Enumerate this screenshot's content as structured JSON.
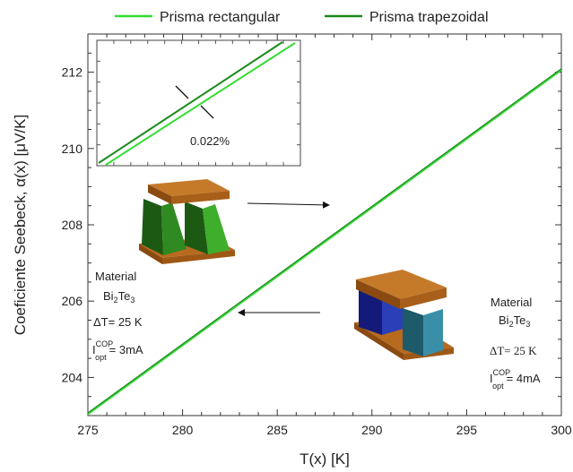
{
  "chart_data": {
    "type": "line",
    "xlabel": "T(x) [K]",
    "ylabel": "Coeficiente Seebeck, α(x) [μV/K]",
    "xlim": [
      275,
      300
    ],
    "ylim": [
      203,
      213
    ],
    "xticks": [
      "275",
      "280",
      "285",
      "290",
      "295",
      "300"
    ],
    "yticks": [
      "204",
      "206",
      "208",
      "210",
      "212"
    ],
    "series": [
      {
        "name": "Prisma rectangular",
        "color": "#33dd33",
        "x": [
          275,
          300
        ],
        "y": [
          203.03,
          212.05
        ]
      },
      {
        "name": "Prisma trapezoidal",
        "color": "#1a8a1a",
        "x": [
          275,
          300
        ],
        "y": [
          203.07,
          212.09
        ]
      }
    ],
    "legend_position": "top",
    "inset": {
      "annotation": "0.022%",
      "series": [
        {
          "color": "#33dd33",
          "x": [
            0,
            1
          ],
          "y": [
            0.0,
            1.0
          ]
        },
        {
          "color": "#1a8a1a",
          "x": [
            0,
            1
          ],
          "y": [
            0.03,
            1.03
          ]
        }
      ]
    },
    "annotations": {
      "left": {
        "title": "Material",
        "mat_base1": "Bi",
        "mat_sub1": "2",
        "mat_base2": "Te",
        "mat_sub2": "3",
        "delta_t": "ΔT= 25 K",
        "i_base": "I",
        "i_sup": "COP",
        "i_sub": "opt",
        "i_val": "= 3mA"
      },
      "right": {
        "title": "Material",
        "mat_base1": "Bi",
        "mat_sub1": "2",
        "mat_base2": "Te",
        "mat_sub2": "3",
        "delta_t": "ΔT= 25 K",
        "i_base": "I",
        "i_sup": "COP",
        "i_sub": "opt",
        "i_val": "= 4mA"
      }
    }
  }
}
